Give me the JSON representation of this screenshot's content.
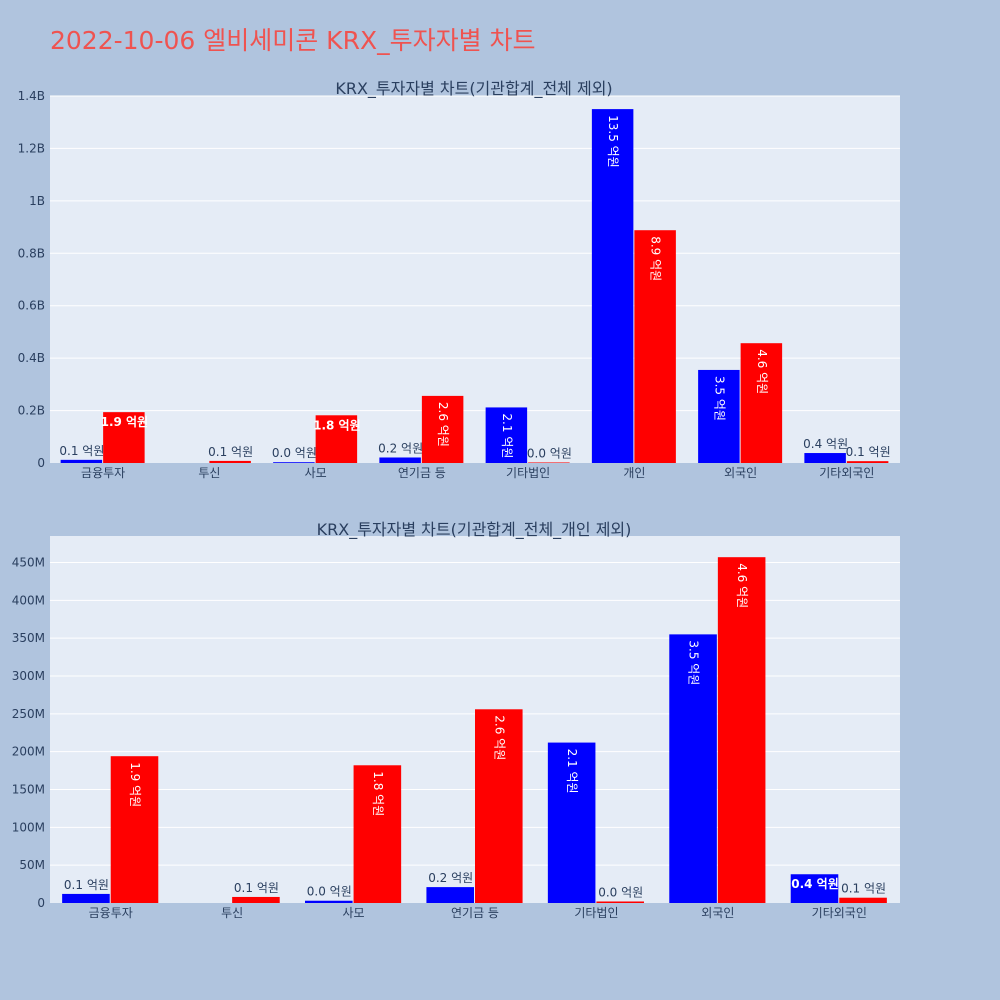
{
  "page_title": "2022-10-06 엘비세미콘 KRX_투자자별 차트",
  "colors": {
    "background": "#b0c4de",
    "plot_bg": "#e5ecf6",
    "grid": "#ffffff",
    "buy": "#0000ff",
    "sell": "#ff0000",
    "title": "#ef5350",
    "text": "#2a3f5f"
  },
  "chart_data": [
    {
      "type": "bar",
      "title": "KRX_투자자별 차트(기관합계_전체 제외)",
      "categories": [
        "금융투자",
        "투신",
        "사모",
        "연기금 등",
        "기타법인",
        "개인",
        "외국인",
        "기타외국인"
      ],
      "ylim": [
        0,
        1400000000
      ],
      "yticks": [
        0,
        200000000,
        400000000,
        600000000,
        800000000,
        1000000000,
        1200000000,
        1400000000
      ],
      "ytick_labels": [
        "0",
        "0.2B",
        "0.4B",
        "0.6B",
        "0.8B",
        "1B",
        "1.2B",
        "1.4B"
      ],
      "series": [
        {
          "color": "#0000ff",
          "values": [
            12000000,
            0,
            3000000,
            21000000,
            212000000,
            1350000000,
            355000000,
            38000000
          ],
          "labels": [
            "0.1 억원",
            "",
            "0.0 억원",
            "0.2 억원",
            "2.1 억원",
            "13.5 억원",
            "3.5 억원",
            "0.4 억원"
          ]
        },
        {
          "color": "#ff0000",
          "values": [
            194000000,
            8000000,
            182000000,
            256000000,
            2000000,
            888000000,
            457000000,
            7000000
          ],
          "labels": [
            "1.9 억원",
            "0.1 억원",
            "1.8 억원",
            "2.6 억원",
            "0.0 억원",
            "8.9 억원",
            "4.6 억원",
            "0.1 억원"
          ]
        }
      ],
      "grid": true,
      "legend": "none"
    },
    {
      "type": "bar",
      "title": "KRX_투자자별 차트(기관합계_전체_개인 제외)",
      "categories": [
        "금융투자",
        "투신",
        "사모",
        "연기금 등",
        "기타법인",
        "외국인",
        "기타외국인"
      ],
      "ylim": [
        0,
        485000000
      ],
      "yticks": [
        0,
        50000000,
        100000000,
        150000000,
        200000000,
        250000000,
        300000000,
        350000000,
        400000000,
        450000000
      ],
      "ytick_labels": [
        "0",
        "50M",
        "100M",
        "150M",
        "200M",
        "250M",
        "300M",
        "350M",
        "400M",
        "450M"
      ],
      "series": [
        {
          "color": "#0000ff",
          "values": [
            12000000,
            0,
            3000000,
            21000000,
            212000000,
            355000000,
            38000000
          ],
          "labels": [
            "0.1 억원",
            "",
            "0.0 억원",
            "0.2 억원",
            "2.1 억원",
            "3.5 억원",
            "0.4 억원"
          ]
        },
        {
          "color": "#ff0000",
          "values": [
            194000000,
            8000000,
            182000000,
            256000000,
            2000000,
            457000000,
            7000000
          ],
          "labels": [
            "1.9 억원",
            "0.1 억원",
            "1.8 억원",
            "2.6 억원",
            "0.0 억원",
            "4.6 억원",
            "0.1 억원"
          ]
        }
      ],
      "grid": true,
      "legend": "none"
    }
  ]
}
